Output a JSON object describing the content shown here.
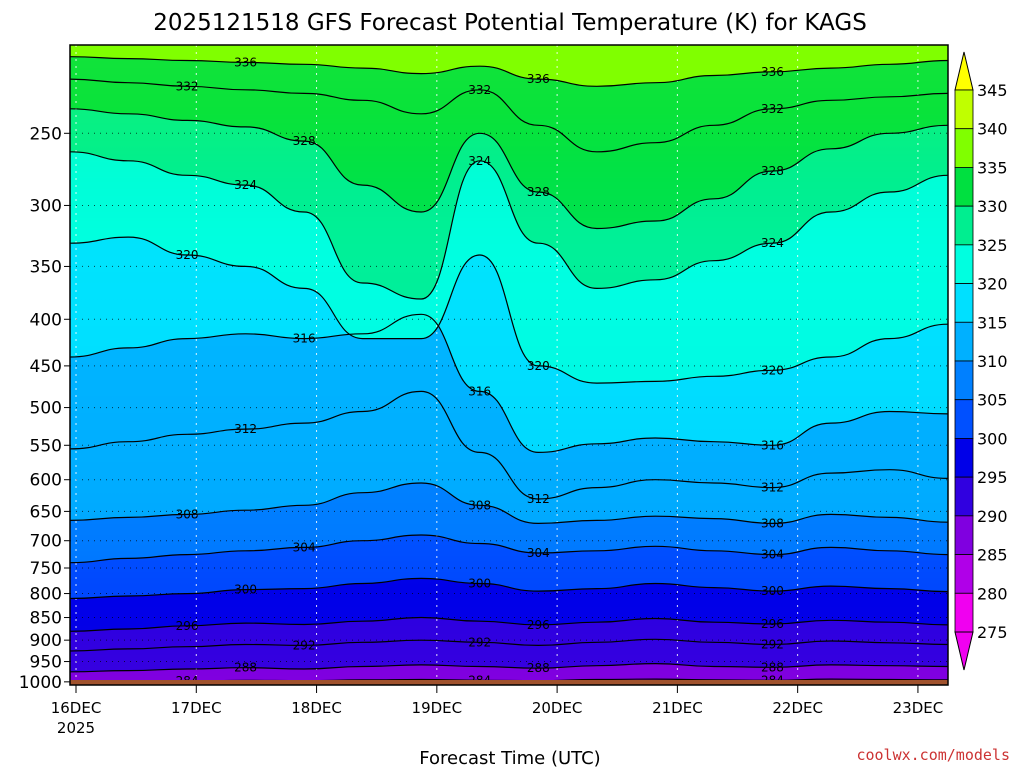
{
  "chart_data": {
    "type": "heatmap",
    "title": "2025121518 GFS Forecast Potential Temperature (K) for KAGS",
    "xlabel": "Forecast Time (UTC)",
    "ylabel": "",
    "credit": "coolwx.com/models",
    "x_ticks": [
      {
        "label": "16DEC",
        "day": 16,
        "sub": "2025"
      },
      {
        "label": "17DEC",
        "day": 17,
        "sub": ""
      },
      {
        "label": "18DEC",
        "day": 18,
        "sub": ""
      },
      {
        "label": "19DEC",
        "day": 19,
        "sub": ""
      },
      {
        "label": "20DEC",
        "day": 20,
        "sub": ""
      },
      {
        "label": "21DEC",
        "day": 21,
        "sub": ""
      },
      {
        "label": "22DEC",
        "day": 22,
        "sub": ""
      },
      {
        "label": "23DEC",
        "day": 23,
        "sub": ""
      }
    ],
    "x_range_days": [
      15.95,
      23.25
    ],
    "y_ticks": [
      1000,
      950,
      900,
      850,
      800,
      750,
      700,
      650,
      600,
      550,
      500,
      450,
      400,
      350,
      300,
      250
    ],
    "y_range_hpa": [
      1008,
      200
    ],
    "y_scale": "log-pressure",
    "colorbar": {
      "levels": [
        345,
        340,
        335,
        330,
        325,
        320,
        315,
        310,
        305,
        300,
        295,
        290,
        285,
        280,
        275
      ],
      "colors": [
        "#ffff00",
        "#c0ff00",
        "#80ff00",
        "#00e040",
        "#00ee90",
        "#00ffe0",
        "#00e0ff",
        "#00b0ff",
        "#0080ff",
        "#0050ff",
        "#0000e8",
        "#3000e0",
        "#8000e0",
        "#b000e8",
        "#f000f0"
      ],
      "placement": "right"
    },
    "contours": [
      {
        "theta": 284,
        "label": "284",
        "p": [
          1001,
          1000,
          998,
          996,
          997,
          995,
          994,
          996,
          997,
          994,
          993,
          995,
          996,
          993,
          994,
          995
        ]
      },
      {
        "theta": 288,
        "label": "288",
        "p": [
          975,
          972,
          968,
          965,
          968,
          962,
          958,
          962,
          966,
          960,
          955,
          962,
          964,
          958,
          960,
          962
        ]
      },
      {
        "theta": 292,
        "label": "292",
        "p": [
          925,
          920,
          915,
          910,
          912,
          905,
          900,
          905,
          912,
          905,
          898,
          905,
          910,
          902,
          906,
          910
        ]
      },
      {
        "theta": 296,
        "label": "296",
        "p": [
          880,
          875,
          868,
          862,
          865,
          858,
          850,
          858,
          866,
          860,
          852,
          860,
          864,
          856,
          860,
          866
        ]
      },
      {
        "theta": 300,
        "label": "300",
        "p": [
          810,
          805,
          800,
          792,
          790,
          780,
          770,
          780,
          795,
          790,
          780,
          788,
          795,
          785,
          790,
          796
        ]
      },
      {
        "theta": 304,
        "label": "304",
        "p": [
          740,
          732,
          725,
          718,
          712,
          700,
          690,
          705,
          722,
          718,
          710,
          718,
          725,
          712,
          718,
          725
        ]
      },
      {
        "theta": 308,
        "label": "308",
        "p": [
          665,
          660,
          655,
          648,
          640,
          620,
          605,
          640,
          670,
          665,
          658,
          662,
          670,
          655,
          660,
          668
        ]
      },
      {
        "theta": 312,
        "label": "312",
        "p": [
          555,
          545,
          535,
          528,
          520,
          505,
          480,
          560,
          630,
          612,
          600,
          605,
          612,
          590,
          585,
          598
        ]
      },
      {
        "theta": 316,
        "label": "316",
        "p": [
          440,
          430,
          420,
          415,
          420,
          415,
          395,
          480,
          560,
          548,
          540,
          545,
          550,
          520,
          505,
          508
        ]
      },
      {
        "theta": 320,
        "label": "320",
        "p": [
          330,
          325,
          340,
          350,
          370,
          420,
          420,
          340,
          450,
          470,
          468,
          462,
          455,
          440,
          420,
          405
        ]
      },
      {
        "theta": 324,
        "label": "324",
        "p": [
          262,
          268,
          278,
          285,
          305,
          365,
          380,
          268,
          330,
          370,
          362,
          345,
          330,
          305,
          290,
          278
        ]
      },
      {
        "theta": 328,
        "label": "328",
        "p": [
          235,
          238,
          242,
          246,
          255,
          285,
          305,
          250,
          290,
          318,
          312,
          295,
          275,
          260,
          250,
          245
        ]
      },
      {
        "theta": 332,
        "label": "332",
        "p": [
          218,
          220,
          222,
          224,
          226,
          230,
          238,
          224,
          245,
          262,
          256,
          245,
          235,
          230,
          228,
          226
        ]
      },
      {
        "theta": 336,
        "label": "336",
        "p": [
          206,
          207,
          208,
          209,
          210,
          212,
          215,
          211,
          218,
          222,
          220,
          216,
          214,
          212,
          210,
          208
        ]
      }
    ]
  }
}
